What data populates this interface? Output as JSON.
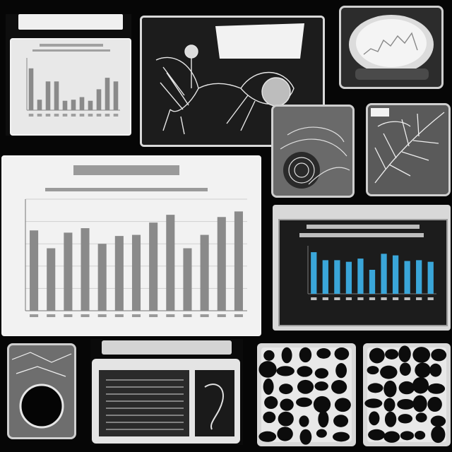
{
  "colors": {
    "background": "#060606",
    "panel_light": "#e8e8e8",
    "panel_dark": "#1c1c1c",
    "bar_gray": "#8a8a8a",
    "bar_blue": "#3aa6d9"
  },
  "large_chart": {
    "chart_data": {
      "type": "bar",
      "title": "",
      "values": [
        72,
        56,
        70,
        74,
        60,
        67,
        68,
        79,
        86,
        56,
        68,
        84,
        89
      ],
      "ylim": [
        0,
        100
      ],
      "grid": true
    }
  },
  "small_chart": {
    "chart_data": {
      "type": "bar",
      "values": [
        80,
        20,
        55,
        55,
        18,
        20,
        25,
        18,
        40,
        62,
        55
      ],
      "ylim": [
        0,
        100
      ]
    }
  },
  "dark_chart": {
    "chart_data": {
      "type": "bar",
      "values": [
        52,
        42,
        42,
        40,
        44,
        30,
        50,
        48,
        41,
        42,
        40
      ],
      "ylim": [
        0,
        60
      ]
    }
  },
  "icons": {
    "illustration_main": "specimen-illustration",
    "illustration_shell": "shell-illustration",
    "illustration_leaf": "leaf-vein-illustration",
    "pattern_cells_a": "cell-pattern",
    "pattern_cells_b": "cell-pattern",
    "sphere_tile": "sphere-illustration"
  }
}
